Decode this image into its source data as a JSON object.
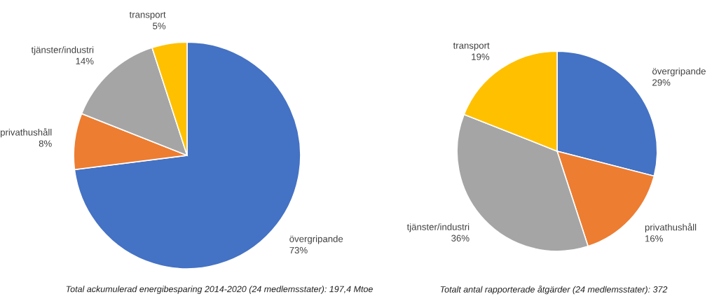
{
  "chart_data": [
    {
      "type": "pie",
      "categories": [
        "övergripande",
        "privathushåll",
        "tjänster/industri",
        "transport"
      ],
      "values": [
        73,
        8,
        14,
        5
      ],
      "value_labels": [
        "73%",
        "8%",
        "14%",
        "5%"
      ],
      "colors": [
        "#4472c4",
        "#ed7d31",
        "#a5a5a5",
        "#ffc000"
      ],
      "annotations": [
        "Total ackumulerad energibesparing 2014-2020 (24 medlemsstater): 197,4 Mtoe"
      ]
    },
    {
      "type": "pie",
      "categories": [
        "övergripande",
        "privathushåll",
        "tjänster/industri",
        "transport"
      ],
      "values": [
        29,
        16,
        36,
        19
      ],
      "value_labels": [
        "29%",
        "16%",
        "36%",
        "19%"
      ],
      "colors": [
        "#4472c4",
        "#ed7d31",
        "#a5a5a5",
        "#ffc000"
      ],
      "annotations": [
        "Totalt antal rapporterade åtgärder (24 medlemsstater): 372"
      ]
    }
  ]
}
